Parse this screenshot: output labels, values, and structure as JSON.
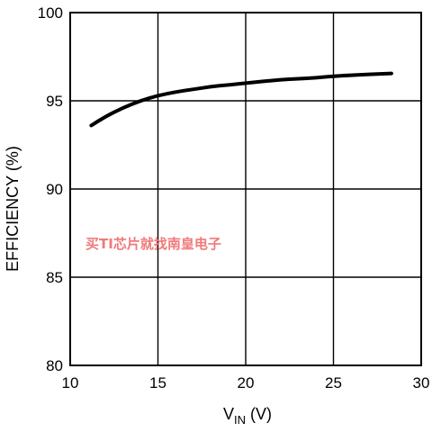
{
  "chart_data": {
    "type": "line",
    "xlabel_main": "V",
    "xlabel_sub": "IN",
    "xlabel_unit": " (V)",
    "ylabel": "EFFICIENCY (%)",
    "xlim": [
      10,
      30
    ],
    "ylim": [
      80,
      100
    ],
    "x_ticks": [
      "10",
      "15",
      "20",
      "25",
      "30"
    ],
    "y_ticks": [
      "80",
      "85",
      "90",
      "95",
      "100"
    ],
    "grid": true,
    "series": [
      {
        "x": [
          11.2,
          12,
          13,
          14,
          15,
          16,
          17,
          18,
          19,
          20,
          21,
          22,
          23,
          24,
          25,
          26,
          27,
          28.3
        ],
        "y": [
          93.6,
          94.1,
          94.6,
          95.0,
          95.3,
          95.5,
          95.65,
          95.8,
          95.9,
          96.0,
          96.1,
          96.2,
          96.25,
          96.3,
          96.4,
          96.45,
          96.5,
          96.55
        ],
        "color": "#000000"
      }
    ]
  },
  "watermark": "买TI芯片就找南皇电子"
}
